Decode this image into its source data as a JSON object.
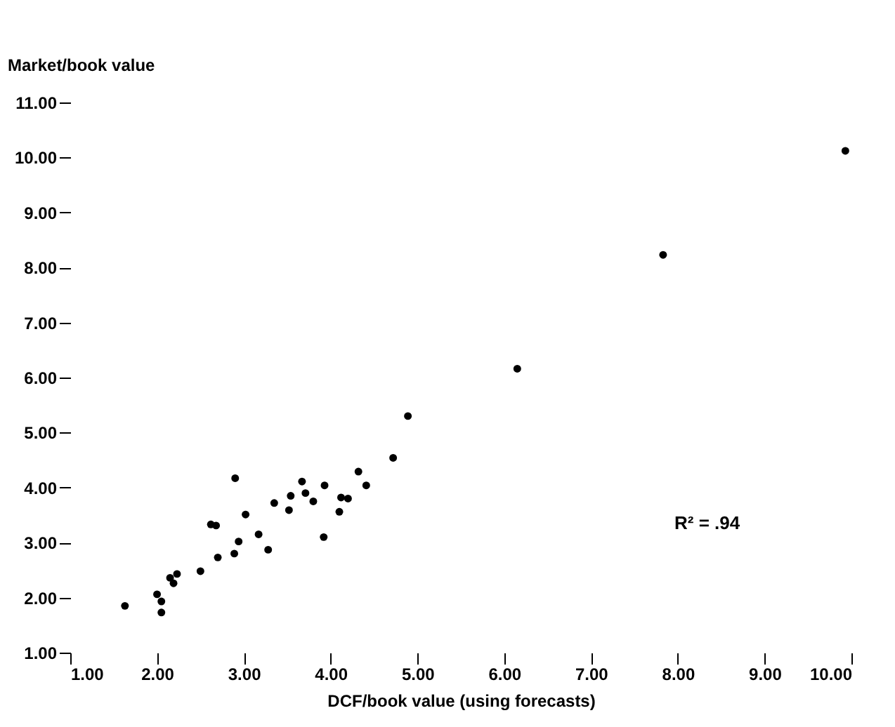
{
  "chart_data": {
    "type": "scatter",
    "xlabel": "DCF/book value (using forecasts)",
    "ylabel": "Market/book value",
    "x": [
      1.63,
      2.0,
      2.05,
      2.05,
      2.15,
      2.19,
      2.23,
      2.5,
      2.62,
      2.68,
      2.7,
      2.9,
      2.89,
      2.94,
      3.02,
      3.17,
      3.28,
      3.35,
      3.52,
      3.54,
      3.67,
      3.71,
      3.8,
      3.92,
      3.93,
      4.1,
      4.12,
      4.2,
      4.32,
      4.41,
      4.72,
      4.89,
      6.15,
      7.83,
      9.93
    ],
    "values": [
      1.85,
      2.06,
      1.93,
      1.73,
      2.36,
      2.26,
      2.43,
      2.48,
      3.33,
      3.31,
      2.73,
      4.17,
      2.8,
      3.02,
      3.51,
      3.15,
      2.87,
      3.72,
      3.59,
      3.85,
      4.11,
      3.9,
      3.75,
      3.1,
      4.04,
      3.56,
      3.82,
      3.8,
      4.29,
      4.04,
      4.54,
      5.3,
      6.16,
      8.23,
      10.12
    ],
    "color": "#000000",
    "marker": "circle",
    "grid": false,
    "xlim": [
      1,
      10
    ],
    "ylim": [
      1,
      11
    ],
    "xticks": [
      {
        "value": 1,
        "label": "1.00"
      },
      {
        "value": 2,
        "label": "2.00"
      },
      {
        "value": 3,
        "label": "3.00"
      },
      {
        "value": 4,
        "label": "4.00"
      },
      {
        "value": 5,
        "label": "5.00"
      },
      {
        "value": 6,
        "label": "6.00"
      },
      {
        "value": 7,
        "label": "7.00"
      },
      {
        "value": 8,
        "label": "8.00"
      },
      {
        "value": 9,
        "label": "9.00"
      },
      {
        "value": 10,
        "label": "10.00"
      }
    ],
    "yticks": [
      {
        "value": 1,
        "label": "1.00"
      },
      {
        "value": 2,
        "label": "2.00"
      },
      {
        "value": 3,
        "label": "3.00"
      },
      {
        "value": 4,
        "label": "4.00"
      },
      {
        "value": 5,
        "label": "5.00"
      },
      {
        "value": 6,
        "label": "6.00"
      },
      {
        "value": 7,
        "label": "7.00"
      },
      {
        "value": 8,
        "label": "8.00"
      },
      {
        "value": 9,
        "label": "9.00"
      },
      {
        "value": 10,
        "label": "10.00"
      },
      {
        "value": 11,
        "label": "11.00"
      }
    ],
    "annotations": [
      "R² = .94"
    ]
  }
}
